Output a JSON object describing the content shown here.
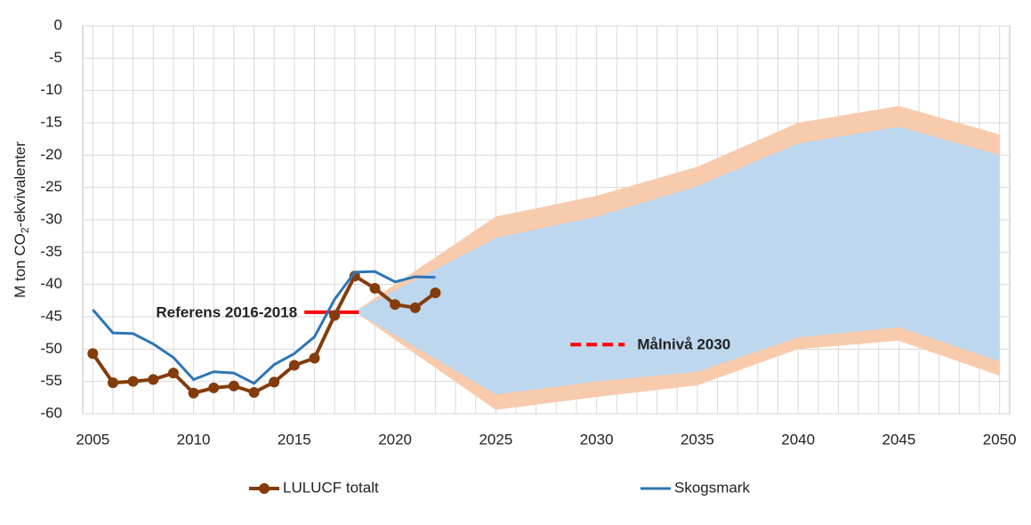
{
  "chart_data": {
    "type": "line",
    "ylabel": [
      "M ton CO",
      "2",
      "-ekvivalenter"
    ],
    "xlim": [
      2004.5,
      2050.5
    ],
    "ylim": [
      -60,
      0
    ],
    "xticks": [
      2005,
      2010,
      2015,
      2020,
      2025,
      2030,
      2035,
      2040,
      2045,
      2050
    ],
    "yticks": [
      0,
      -5,
      -10,
      -15,
      -20,
      -25,
      -30,
      -35,
      -40,
      -45,
      -50,
      -55,
      -60
    ],
    "grid": true,
    "xgrid_step": 1,
    "legend": "bottom",
    "bands": [
      {
        "color": "#f8cbad",
        "x": [
          2018,
          2025,
          2030,
          2035,
          2040,
          2045,
          2050
        ],
        "upper": [
          -44.2,
          -29.5,
          -26.3,
          -21.8,
          -15,
          -12.4,
          -16.8
        ],
        "lower": [
          -44.2,
          -59.4,
          -57.4,
          -55.6,
          -50,
          -48.7,
          -54.1
        ]
      },
      {
        "color": "#bdd7ee",
        "x": [
          2018,
          2025,
          2030,
          2035,
          2040,
          2045,
          2050
        ],
        "upper": [
          -44.2,
          -32.8,
          -29.5,
          -24.8,
          -18.2,
          -15.6,
          -20
        ],
        "lower": [
          -44.2,
          -57,
          -55,
          -53.5,
          -48.2,
          -46.6,
          -51.9
        ]
      }
    ],
    "x": [
      2005,
      2006,
      2007,
      2008,
      2009,
      2010,
      2011,
      2012,
      2013,
      2014,
      2015,
      2016,
      2017,
      2018,
      2019,
      2020,
      2021,
      2022
    ],
    "series": [
      {
        "name": "LULUCF totalt",
        "color": "#843c0c",
        "markers": true,
        "values": [
          -50.7,
          -55.2,
          -55.0,
          -54.7,
          -53.7,
          -56.8,
          -56.0,
          -55.7,
          -56.7,
          -55.1,
          -52.5,
          -51.4,
          -44.8,
          -38.7,
          -40.6,
          -43.1,
          -43.6,
          -41.3
        ]
      },
      {
        "name": "Skogsmark",
        "color": "#2e75b6",
        "markers": false,
        "values": [
          -43.9,
          -47.5,
          -47.6,
          -49.2,
          -51.3,
          -54.7,
          -53.5,
          -53.7,
          -55.3,
          -52.4,
          -50.7,
          -48.1,
          -42.3,
          -38.1,
          -38.0,
          -39.6,
          -38.8,
          -38.9
        ]
      }
    ],
    "reference_lines": [
      {
        "label": "Referens 2016-2018",
        "value": -44.3,
        "x": [
          2015.5,
          2018.2
        ],
        "color": "#ff0000",
        "dashed": false,
        "label_side": "left"
      },
      {
        "label": "Målnivå 2030",
        "value": -49.3,
        "x": [
          2028.7,
          2031.4
        ],
        "color": "#ff0000",
        "dashed": true,
        "label_side": "right"
      }
    ]
  }
}
